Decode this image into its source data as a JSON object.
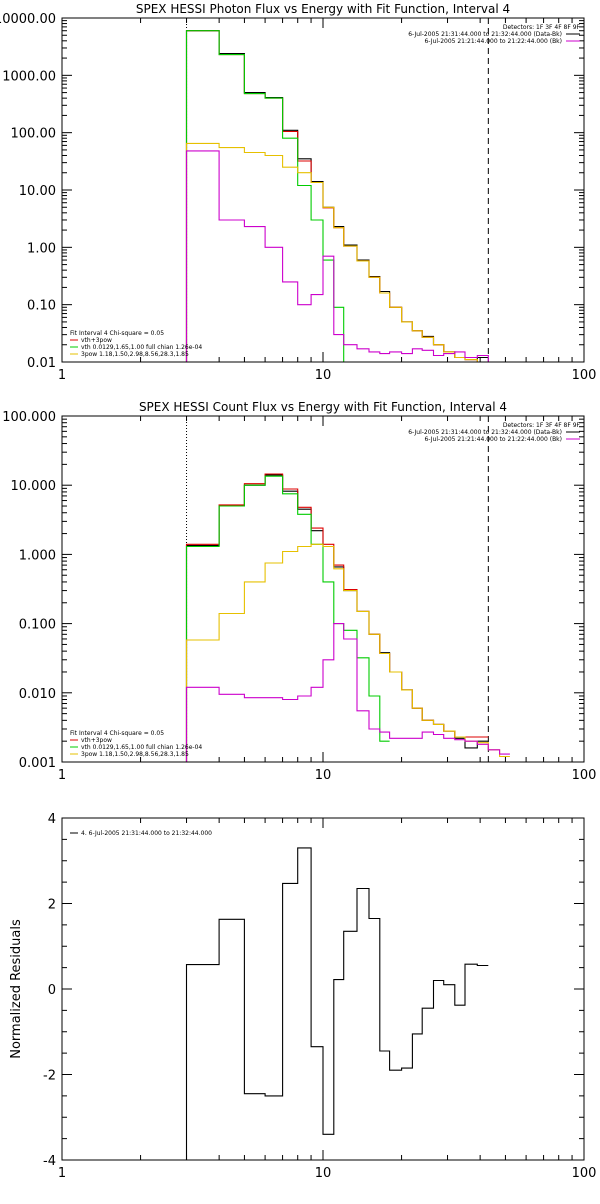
{
  "chart_data": [
    {
      "type": "line",
      "title": "SPEX HESSI Photon Flux vs Energy with Fit Function, Interval 4",
      "xscale": "log",
      "yscale": "log",
      "xlim": [
        1,
        100
      ],
      "ylim": [
        0.01,
        10000
      ],
      "xticks": [
        {
          "v": 1,
          "label": "1"
        },
        {
          "v": 10,
          "label": "10"
        },
        {
          "v": 100,
          "label": "100"
        }
      ],
      "yticks": [
        {
          "v": 10000,
          "label": "10000.00"
        },
        {
          "v": 1000,
          "label": "1000.00"
        },
        {
          "v": 100,
          "label": "100.00"
        },
        {
          "v": 10,
          "label": "10.00"
        },
        {
          "v": 1,
          "label": "1.00"
        },
        {
          "v": 0.1,
          "label": "0.10"
        },
        {
          "v": 0.01,
          "label": "0.01"
        }
      ],
      "vlines": [
        {
          "x": 3,
          "style": "dotted"
        },
        {
          "x": 43,
          "style": "dashed"
        }
      ],
      "legend_right": [
        {
          "text": "Detectors: 1F 3F 4F 8F 9F",
          "color": ""
        },
        {
          "text": "6-Jul-2005 21:31:44.000 to 21:32:44.000 (Data-Bk)",
          "color": "#000000"
        },
        {
          "text": "6-Jul-2005 21:21:44.000 to 21:22:44.000 (Bk)",
          "color": "#cc00cc"
        }
      ],
      "legend_left": [
        {
          "text": "Fit Interval 4   Chi-square = 0.05",
          "color": ""
        },
        {
          "text": "vth+3pow",
          "color": "#dd0000"
        },
        {
          "text": "vth 0.0129,1.65,1.00  full chian 1.26e-04",
          "color": "#00cc00"
        },
        {
          "text": "3pow 1.18,1.50,2.98,8.56,28.3,1.85",
          "color": "#e6c000"
        }
      ],
      "edges": [
        3,
        4,
        5,
        6,
        7,
        8,
        9,
        10,
        11,
        12,
        13.5,
        15,
        16.5,
        18,
        20,
        22,
        24,
        26.5,
        29,
        32,
        35,
        39,
        43,
        47.5
      ],
      "series": [
        {
          "color": "#000000",
          "values": [
            6000,
            2400,
            500,
            410,
            110,
            35,
            14,
            5.0,
            2.3,
            1.1,
            0.6,
            0.31,
            0.17,
            0.09,
            0.05,
            0.035,
            0.028,
            0.02,
            0.015,
            0.012,
            0.011,
            0.012,
            null
          ]
        },
        {
          "color": "#dd0000",
          "values": [
            6000,
            2300,
            480,
            400,
            105,
            32,
            13.5,
            4.9,
            2.2,
            1.05,
            0.58,
            0.3,
            0.16,
            0.09,
            0.05,
            0.035,
            0.027,
            0.02,
            0.015,
            0.012,
            0.011,
            0.01,
            null
          ]
        },
        {
          "color": "#00cc00",
          "values": [
            6000,
            2300,
            480,
            400,
            80,
            12,
            3,
            0.6,
            0.09,
            0.01,
            null,
            null,
            null,
            null,
            null,
            null,
            null,
            null,
            null,
            null,
            null,
            null,
            null
          ]
        },
        {
          "color": "#e6c000",
          "values": [
            65,
            55,
            45,
            40,
            25,
            20,
            13.5,
            5.0,
            2.2,
            1.05,
            0.58,
            0.3,
            0.16,
            0.09,
            0.05,
            0.035,
            0.027,
            0.02,
            0.015,
            0.012,
            0.011,
            0.01,
            0.008
          ]
        },
        {
          "color": "#cc00cc",
          "values": [
            48,
            3.0,
            2.3,
            1.0,
            0.25,
            0.1,
            0.15,
            0.7,
            0.03,
            0.02,
            0.017,
            0.015,
            0.014,
            0.015,
            0.014,
            0.017,
            0.016,
            0.013,
            0.014,
            0.015,
            0.012,
            0.013,
            0.008
          ]
        }
      ]
    },
    {
      "type": "line",
      "title": "SPEX HESSI Count Flux vs Energy with Fit Function, Interval 4",
      "xscale": "log",
      "yscale": "log",
      "xlim": [
        1,
        100
      ],
      "ylim": [
        0.001,
        100
      ],
      "xticks": [
        {
          "v": 1,
          "label": "1"
        },
        {
          "v": 10,
          "label": "10"
        },
        {
          "v": 100,
          "label": "100"
        }
      ],
      "yticks": [
        {
          "v": 100,
          "label": "100.000"
        },
        {
          "v": 10,
          "label": "10.000"
        },
        {
          "v": 1,
          "label": "1.000"
        },
        {
          "v": 0.1,
          "label": "0.100"
        },
        {
          "v": 0.01,
          "label": "0.010"
        },
        {
          "v": 0.001,
          "label": "0.001"
        }
      ],
      "vlines": [
        {
          "x": 3,
          "style": "dotted"
        },
        {
          "x": 43,
          "style": "dashed"
        }
      ],
      "legend_right": [
        {
          "text": "Detectors: 1F 3F 4F 8F 9F",
          "color": ""
        },
        {
          "text": "6-Jul-2005 21:31:44.000 to 21:32:44.000 (Data-Bk)",
          "color": "#000000"
        },
        {
          "text": "6-Jul-2005 21:21:44.000 to 21:22:44.000 (Bk)",
          "color": "#cc00cc"
        }
      ],
      "legend_left": [
        {
          "text": "Fit Interval 4   Chi-square = 0.05",
          "color": ""
        },
        {
          "text": "vth+3pow",
          "color": "#dd0000"
        },
        {
          "text": "vth 0.0129,1.65,1.00  full chian 1.26e-04",
          "color": "#00cc00"
        },
        {
          "text": "3pow 1.18,1.50,2.98,8.56,28.3,1.85",
          "color": "#e6c000"
        }
      ],
      "edges": [
        3,
        4,
        5,
        6,
        7,
        8,
        9,
        10,
        11,
        12,
        13.5,
        15,
        16.5,
        18,
        20,
        22,
        24,
        26.5,
        29,
        32,
        35,
        39,
        43,
        47.5,
        52
      ],
      "series": [
        {
          "color": "#000000",
          "values": [
            1.35,
            5.0,
            10.0,
            14.0,
            8.2,
            4.5,
            2.2,
            1.3,
            0.66,
            0.3,
            0.15,
            0.07,
            0.038,
            0.02,
            0.011,
            0.006,
            0.004,
            0.0035,
            0.0028,
            0.0022,
            0.0016,
            0.002,
            null,
            null
          ]
        },
        {
          "color": "#dd0000",
          "values": [
            1.4,
            5.2,
            10.5,
            14.5,
            8.8,
            4.8,
            2.4,
            1.4,
            0.7,
            0.31,
            0.15,
            0.07,
            0.037,
            0.02,
            0.011,
            0.006,
            0.004,
            0.0035,
            0.0028,
            0.0023,
            0.0023,
            0.0023,
            null,
            null
          ]
        },
        {
          "color": "#00cc00",
          "values": [
            1.3,
            5.0,
            10.0,
            13.5,
            7.5,
            3.8,
            1.4,
            0.4,
            0.1,
            0.08,
            0.032,
            0.009,
            0.002,
            null,
            null,
            null,
            null,
            null,
            null,
            null,
            null,
            null,
            null,
            null
          ]
        },
        {
          "color": "#e6c000",
          "values": [
            0.058,
            0.14,
            0.4,
            0.75,
            1.1,
            1.3,
            1.4,
            1.3,
            0.62,
            0.3,
            0.15,
            0.07,
            0.037,
            0.02,
            0.011,
            0.006,
            0.004,
            0.0035,
            0.0028,
            0.0023,
            0.002,
            0.0019,
            0.0015,
            0.0012
          ]
        },
        {
          "color": "#cc00cc",
          "values": [
            0.012,
            0.0095,
            0.0085,
            0.0085,
            0.008,
            0.009,
            0.012,
            0.03,
            0.1,
            0.06,
            0.0055,
            0.003,
            0.0027,
            0.0022,
            0.0022,
            0.0022,
            0.0027,
            0.0025,
            0.0022,
            0.0021,
            0.002,
            0.0018,
            0.0015,
            0.0013
          ]
        }
      ]
    },
    {
      "type": "line",
      "title": "",
      "ylabel": "Normalized Residuals",
      "xscale": "log",
      "yscale": "linear",
      "xlim": [
        1,
        100
      ],
      "ylim": [
        -4,
        4
      ],
      "xticks": [
        {
          "v": 1,
          "label": "1"
        },
        {
          "v": 10,
          "label": "10"
        },
        {
          "v": 100,
          "label": "100"
        }
      ],
      "yticks": [
        {
          "v": 4,
          "label": "4"
        },
        {
          "v": 2,
          "label": "2"
        },
        {
          "v": 0,
          "label": "0"
        },
        {
          "v": -2,
          "label": "-2"
        },
        {
          "v": -4,
          "label": "-4"
        }
      ],
      "legend_left": [
        {
          "text": "4.  6-Jul-2005 21:31:44.000 to 21:32:44.000",
          "color": "#000000"
        }
      ],
      "edges": [
        3,
        4,
        5,
        6,
        7,
        8,
        9,
        10,
        11,
        12,
        13.5,
        15,
        16.5,
        18,
        20,
        22,
        24,
        26.5,
        29,
        32,
        35,
        39,
        43
      ],
      "series": [
        {
          "color": "#000000",
          "values": [
            0.57,
            1.63,
            -2.45,
            -2.5,
            2.47,
            3.3,
            -1.35,
            -3.4,
            0.22,
            1.35,
            2.35,
            1.65,
            -1.45,
            -1.9,
            -1.85,
            -1.05,
            -0.45,
            0.2,
            0.1,
            -0.38,
            0.58,
            0.55
          ]
        }
      ]
    }
  ]
}
